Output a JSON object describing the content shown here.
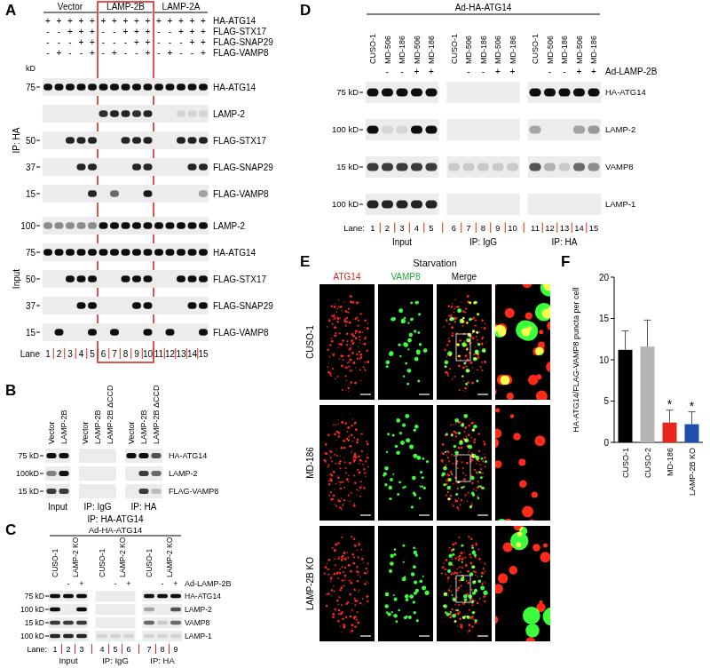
{
  "figure": {
    "panels": {
      "A": {
        "letter": "A",
        "groups": [
          {
            "label": "Vector",
            "span": 5
          },
          {
            "label": "LAMP-2B",
            "span": 5,
            "highlight": true
          },
          {
            "label": "LAMP-2A",
            "span": 5
          }
        ],
        "treatments": [
          {
            "label": "HA-ATG14",
            "signs": [
              "+",
              "+",
              "+",
              "+",
              "+",
              "+",
              "+",
              "+",
              "+",
              "+",
              "+",
              "+",
              "+",
              "+",
              "+"
            ]
          },
          {
            "label": "FLAG-STX17",
            "signs": [
              "-",
              "-",
              "+",
              "+",
              "+",
              "-",
              "-",
              "+",
              "+",
              "+",
              "-",
              "-",
              "+",
              "+",
              "+"
            ]
          },
          {
            "label": "FLAG-SNAP29",
            "signs": [
              "-",
              "-",
              "-",
              "+",
              "+",
              "-",
              "-",
              "-",
              "+",
              "+",
              "-",
              "-",
              "-",
              "+",
              "+"
            ]
          },
          {
            "label": "FLAG-VAMP8",
            "signs": [
              "-",
              "+",
              "-",
              "-",
              "+",
              "-",
              "+",
              "-",
              "-",
              "+",
              "-",
              "+",
              "-",
              "-",
              "+"
            ]
          }
        ],
        "kd_unit": "kD",
        "sections": [
          {
            "label": "IP: HA",
            "blots": [
              {
                "label": "HA-ATG14",
                "kd": "75",
                "bands": [
                  1,
                  1,
                  1,
                  1,
                  1,
                  1,
                  1,
                  1,
                  1,
                  1,
                  1,
                  1,
                  1,
                  1,
                  1
                ]
              },
              {
                "label": "LAMP-2",
                "bands": [
                  0,
                  0,
                  0,
                  0,
                  0,
                  0.85,
                  0.9,
                  0.9,
                  0.85,
                  0.9,
                  0,
                  0,
                  0.1,
                  0.1,
                  0.1
                ]
              },
              {
                "label": "FLAG-STX17",
                "kd": "50",
                "bands": [
                  0,
                  0,
                  0.9,
                  0.9,
                  0.9,
                  0,
                  0,
                  0.9,
                  0.9,
                  0.9,
                  0,
                  0,
                  0.9,
                  0.9,
                  0.9
                ]
              },
              {
                "label": "FLAG-SNAP29",
                "kd": "37",
                "bands": [
                  0,
                  0,
                  0,
                  0.9,
                  0.9,
                  0,
                  0,
                  0,
                  0.9,
                  0.9,
                  0,
                  0,
                  0,
                  0.9,
                  0.9
                ]
              },
              {
                "label": "FLAG-VAMP8",
                "kd": "15",
                "bands": [
                  0,
                  0,
                  0,
                  0,
                  0.9,
                  0,
                  0.6,
                  0,
                  0,
                  0.95,
                  0,
                  0,
                  0,
                  0,
                  0.35
                ]
              }
            ]
          },
          {
            "label": "Input",
            "blots": [
              {
                "label": "LAMP-2",
                "kd": "100",
                "bands": [
                  0.45,
                  0.45,
                  0.45,
                  0.45,
                  0.45,
                  1,
                  1,
                  1,
                  1,
                  1,
                  1,
                  1,
                  1,
                  1,
                  1
                ]
              },
              {
                "label": "HA-ATG14",
                "kd": "75",
                "bands": [
                  1,
                  1,
                  1,
                  1,
                  1,
                  1,
                  1,
                  1,
                  1,
                  1,
                  1,
                  1,
                  1,
                  1,
                  1
                ]
              },
              {
                "label": "FLAG-STX17",
                "kd": "50",
                "bands": [
                  0,
                  0,
                  1,
                  1,
                  1,
                  0,
                  0,
                  1,
                  1,
                  1,
                  0,
                  0,
                  1,
                  1,
                  1
                ]
              },
              {
                "label": "FLAG-SNAP29",
                "kd": "37",
                "bands": [
                  0,
                  0,
                  0,
                  1,
                  1,
                  0,
                  0,
                  0,
                  1,
                  1,
                  0,
                  0,
                  0,
                  1,
                  1
                ]
              },
              {
                "label": "FLAG-VAMP8",
                "kd": "15",
                "bands": [
                  0,
                  1,
                  0,
                  0,
                  1,
                  0,
                  1,
                  0,
                  0,
                  1,
                  0,
                  1,
                  0,
                  0,
                  1
                ]
              }
            ]
          }
        ],
        "lane_label": "Lane",
        "lane_numbers": [
          1,
          2,
          3,
          4,
          5,
          6,
          7,
          8,
          9,
          10,
          11,
          12,
          13,
          14,
          15
        ]
      },
      "B": {
        "letter": "B",
        "columns": [
          "Vector",
          "LAMP-2B",
          "Vector",
          "LAMP-2B",
          "LAMP-2B ΔCCD",
          "Vector",
          "LAMP-2B",
          "LAMP-2B ΔCCD"
        ],
        "groups": [
          {
            "label": "Input",
            "span": 2
          },
          {
            "label": "IP: IgG",
            "span": 3
          },
          {
            "label": "IP: HA",
            "span": 3
          }
        ],
        "blots": [
          {
            "label": "HA-ATG14",
            "kd": "75 kD",
            "bands": [
              1,
              1,
              0,
              0,
              0,
              1,
              1,
              0.7
            ]
          },
          {
            "label": "LAMP-2",
            "kd": "100kD",
            "bands": [
              0.5,
              1,
              0,
              0,
              0,
              0,
              0.8,
              0.6
            ]
          },
          {
            "label": "FLAG-VAMP8",
            "kd": "15 kD",
            "bands": [
              0.8,
              0.8,
              0,
              0,
              0,
              0,
              0.8,
              0.2
            ]
          }
        ]
      },
      "C": {
        "letter": "C",
        "title": "IP: HA-ATG14",
        "construct": "Ad-HA-ATG14",
        "columns": [
          {
            "text": "CUSO-1",
            "span": 1
          },
          {
            "text": "LAMP-2 KO",
            "span": 2
          },
          {
            "text": "CUSO-1",
            "span": 1
          },
          {
            "text": "LAMP-2 KO",
            "span": 2
          },
          {
            "text": "CUSO-1",
            "span": 1
          },
          {
            "text": "LAMP-2 KO",
            "span": 2
          }
        ],
        "treatment": {
          "label": "Ad-LAMP-2B",
          "signs": [
            null,
            "-",
            "+",
            null,
            "-",
            "+",
            null,
            "-",
            "+"
          ]
        },
        "blots": [
          {
            "label": "HA-ATG14",
            "kd": "75 kD",
            "bands": [
              1,
              1,
              1,
              0,
              0,
              0,
              1,
              1,
              1
            ]
          },
          {
            "label": "LAMP-2",
            "kd": "100 kD",
            "bands": [
              1,
              0,
              1,
              0,
              0,
              0,
              0.35,
              0,
              0.7
            ]
          },
          {
            "label": "VAMP8",
            "kd": "15 kD",
            "bands": [
              0.8,
              0.8,
              0.8,
              0,
              0,
              0,
              0.6,
              0.15,
              0.6
            ]
          },
          {
            "label": "LAMP-1",
            "kd": "100 kD",
            "bands": [
              0.9,
              0.9,
              0.9,
              0.1,
              0.1,
              0.1,
              0.1,
              0.1,
              0.1
            ]
          }
        ],
        "groups": [
          {
            "label": "Input",
            "span": 3
          },
          {
            "label": "IP: IgG",
            "span": 3
          },
          {
            "label": "IP: HA",
            "span": 3
          }
        ],
        "lane_label": "Lane:",
        "lane_numbers": [
          1,
          2,
          3,
          4,
          5,
          6,
          7,
          8,
          9
        ]
      },
      "D": {
        "letter": "D",
        "construct": "Ad-HA-ATG14",
        "columns": [
          {
            "text": "CUSO-1",
            "span": 1
          },
          {
            "text": "MD-506",
            "span": 1
          },
          {
            "text": "MD-186",
            "span": 1
          },
          {
            "text": "MD-506",
            "span": 1
          },
          {
            "text": "MD-186",
            "span": 1
          },
          {
            "text": "CUSO-1",
            "span": 1
          },
          {
            "text": "MD-506",
            "span": 1
          },
          {
            "text": "MD-186",
            "span": 1
          },
          {
            "text": "MD-506",
            "span": 1
          },
          {
            "text": "MD-186",
            "span": 1
          },
          {
            "text": "CUSO-1",
            "span": 1
          },
          {
            "text": "MD-506",
            "span": 1
          },
          {
            "text": "MD-186",
            "span": 1
          },
          {
            "text": "MD-506",
            "span": 1
          },
          {
            "text": "MD-186",
            "span": 1
          }
        ],
        "treatment": {
          "label": "Ad-LAMP-2B",
          "signs": [
            null,
            "-",
            "-",
            "+",
            "+",
            null,
            "-",
            "-",
            "+",
            "+",
            null,
            "-",
            "-",
            "+",
            "+"
          ]
        },
        "blots": [
          {
            "label": "HA-ATG14",
            "kd": "75 kD",
            "bands": [
              1,
              1,
              1,
              1,
              1,
              0,
              0,
              0,
              0,
              0,
              1,
              1,
              1,
              1,
              1
            ]
          },
          {
            "label": "LAMP-2",
            "kd": "100 kD",
            "bands": [
              1,
              0.1,
              0.1,
              1,
              1,
              0,
              0,
              0,
              0,
              0,
              0.3,
              0,
              0,
              0.35,
              0.4
            ]
          },
          {
            "label": "VAMP8",
            "kd": "15 kD",
            "bands": [
              0.8,
              0.8,
              0.8,
              0.8,
              0.8,
              0.15,
              0.15,
              0.15,
              0.15,
              0.15,
              0.7,
              0.25,
              0.15,
              0.6,
              0.45
            ]
          },
          {
            "label": "LAMP-1",
            "kd": "100 kD",
            "bands": [
              0.9,
              0.9,
              0.9,
              0.9,
              0.9,
              0,
              0,
              0,
              0,
              0,
              0,
              0,
              0,
              0,
              0
            ]
          }
        ],
        "groups": [
          {
            "label": "Input",
            "span": 5
          },
          {
            "label": "IP: IgG",
            "span": 5
          },
          {
            "label": "IP: HA",
            "span": 5
          }
        ],
        "lane_label": "Lane:",
        "lane_numbers": [
          1,
          2,
          3,
          4,
          5,
          6,
          7,
          8,
          9,
          10,
          11,
          12,
          13,
          14,
          15
        ]
      },
      "E": {
        "letter": "E",
        "title": "Starvation",
        "columns": [
          "ATG14",
          "VAMP8",
          "Merge"
        ],
        "rows": [
          "CUSO-1",
          "MD-186",
          "LAMP-2B KO"
        ]
      },
      "F": {
        "letter": "F"
      }
    }
  },
  "chart_data": {
    "type": "bar",
    "categories": [
      "CUSO-1",
      "CUSO-2",
      "MD-186",
      "LAMP-2B KO"
    ],
    "values": [
      11.2,
      11.6,
      2.4,
      2.2
    ],
    "errors": [
      2.3,
      3.2,
      1.5,
      1.5
    ],
    "colors": [
      "#000000",
      "#b5b5b5",
      "#e8251f",
      "#1f4fa8"
    ],
    "ylim": [
      0,
      20
    ],
    "yticks": [
      0,
      5,
      10,
      15,
      20
    ],
    "y_label": "HA-ATG14/FLAG-VAMP8 puncta per cell",
    "annotations": [
      {
        "category": "MD-186",
        "text": "*"
      },
      {
        "category": "LAMP-2B KO",
        "text": "*"
      }
    ]
  }
}
